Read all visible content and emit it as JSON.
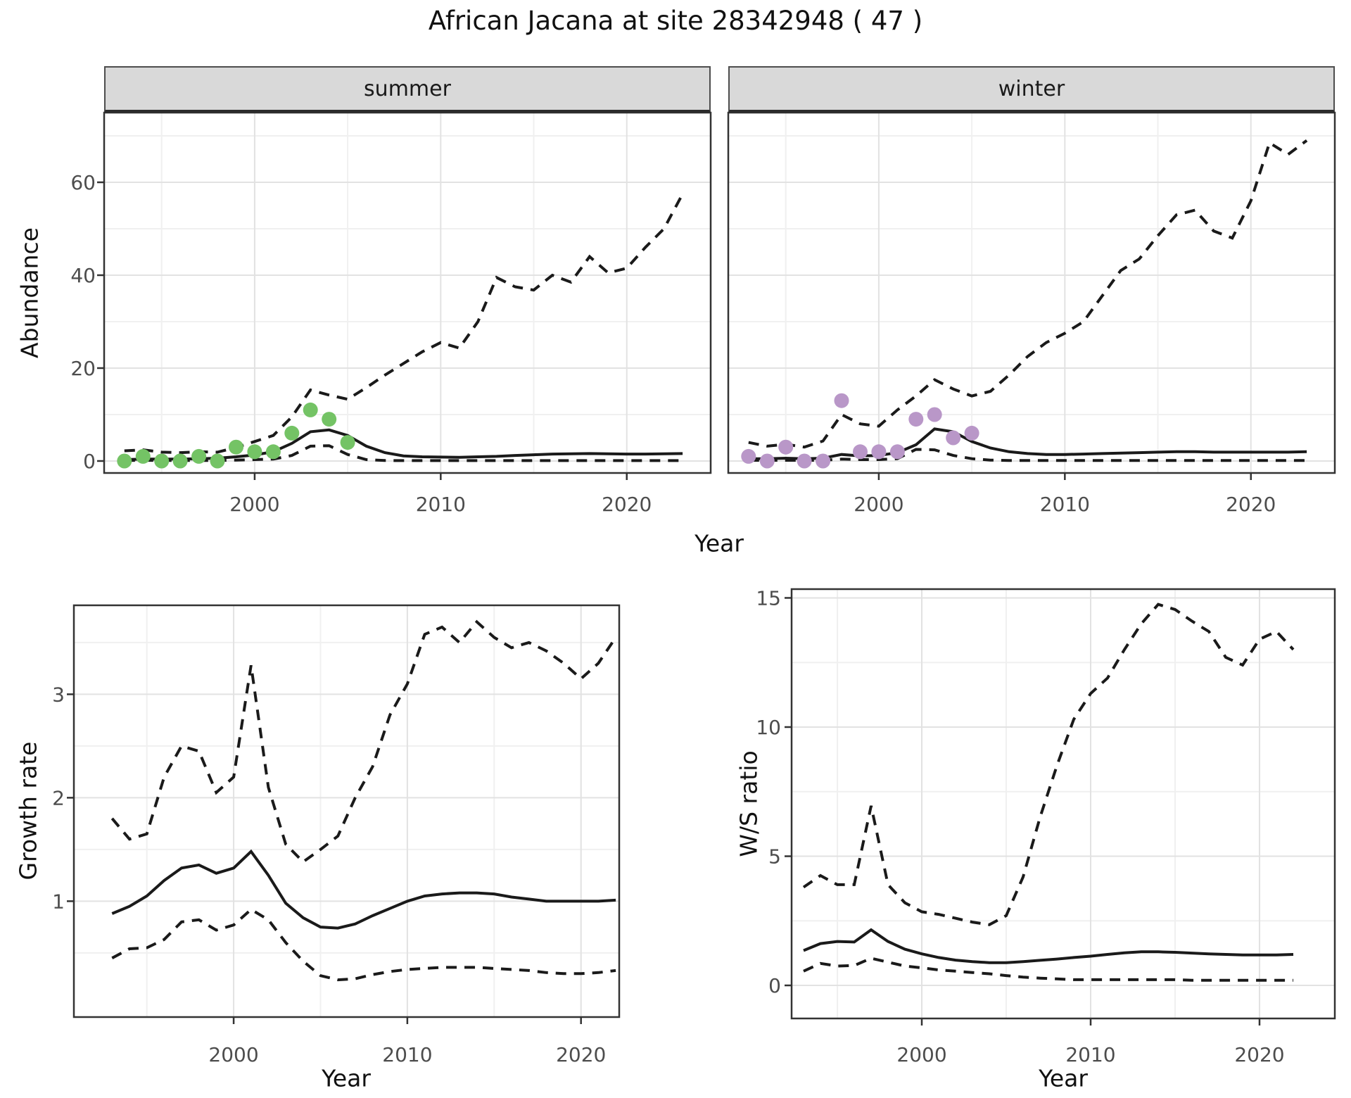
{
  "title": "African Jacana at site 28342948 ( 47 )",
  "facets": {
    "summer_label": "summer",
    "winter_label": "winter"
  },
  "axis_titles": {
    "abundance": "Abundance",
    "year": "Year",
    "growth": "Growth rate",
    "ws": "W/S ratio"
  },
  "colors": {
    "summer_points": "#74c365",
    "winter_points": "#b997c8",
    "line": "#1a1a1a",
    "grid_major": "#e2e2e2",
    "grid_minor": "#f0f0f0",
    "strip_bg": "#d9d9d9",
    "panel_border": "#333333",
    "tick_text": "#4d4d4d",
    "panel_bg": "#ffffff"
  },
  "chart_data": [
    {
      "id": "abundance-summer",
      "type": "line",
      "facet": "summer",
      "xlabel": "Year",
      "ylabel": "Abundance",
      "x": [
        1993,
        1994,
        1995,
        1996,
        1997,
        1998,
        1999,
        2000,
        2001,
        2002,
        2003,
        2004,
        2005,
        2006,
        2007,
        2008,
        2009,
        2010,
        2011,
        2012,
        2013,
        2014,
        2015,
        2016,
        2017,
        2018,
        2019,
        2020,
        2021,
        2022,
        2023
      ],
      "series": [
        {
          "name": "median",
          "style": "solid",
          "values": [
            0.3,
            0.4,
            0.4,
            0.4,
            0.5,
            0.6,
            0.9,
            1.3,
            2.0,
            3.8,
            6.3,
            6.7,
            5.5,
            3.2,
            1.8,
            1.1,
            0.9,
            0.85,
            0.8,
            0.9,
            1.0,
            1.2,
            1.35,
            1.5,
            1.55,
            1.6,
            1.55,
            1.5,
            1.5,
            1.55,
            1.6
          ]
        },
        {
          "name": "upper_CI",
          "style": "dashed",
          "values": [
            2.2,
            2.4,
            1.9,
            1.8,
            2.0,
            1.9,
            2.9,
            4.2,
            5.5,
            9.5,
            15.3,
            14.2,
            13.3,
            15.8,
            18.5,
            21,
            23.5,
            25.5,
            24.3,
            30,
            39.5,
            37.5,
            36.8,
            40,
            38.5,
            44,
            40.5,
            41.5,
            46,
            50,
            57.5
          ]
        },
        {
          "name": "lower_CI",
          "style": "dashed",
          "values": [
            0.1,
            0.15,
            0.1,
            0.1,
            0.1,
            0.1,
            0.2,
            0.3,
            0.4,
            1.2,
            3.2,
            3.3,
            1.4,
            0.3,
            0.1,
            0.08,
            0.08,
            0.08,
            0.08,
            0.08,
            0.08,
            0.08,
            0.08,
            0.08,
            0.08,
            0.08,
            0.08,
            0.08,
            0.08,
            0.08,
            0.08
          ]
        }
      ],
      "points": {
        "name": "observed_counts",
        "color_key": "summer_points",
        "years": [
          1993,
          1994,
          1995,
          1996,
          1997,
          1998,
          1999,
          2000,
          2001,
          2002,
          2003,
          2004,
          2005
        ],
        "values": [
          0,
          1,
          0,
          0,
          1,
          0,
          3,
          2,
          2,
          6,
          11,
          9,
          4
        ]
      },
      "xticks": {
        "values": [
          2000,
          2010,
          2020
        ],
        "labels": [
          "2000",
          "2010",
          "2020"
        ]
      },
      "xminor": [
        1995,
        2005,
        2015
      ],
      "yticks": {
        "values": [
          0,
          20,
          40,
          60
        ],
        "labels": [
          "0",
          "20",
          "40",
          "60"
        ]
      },
      "yminor": [
        10,
        30,
        50,
        70
      ],
      "xlim": [
        1991.91,
        2024.51
      ],
      "ylim": [
        -2.58,
        75.0
      ]
    },
    {
      "id": "abundance-winter",
      "type": "line",
      "facet": "winter",
      "xlabel": "Year",
      "ylabel": "Abundance",
      "x": [
        1993,
        1994,
        1995,
        1996,
        1997,
        1998,
        1999,
        2000,
        2001,
        2002,
        2003,
        2004,
        2005,
        2006,
        2007,
        2008,
        2009,
        2010,
        2011,
        2012,
        2013,
        2014,
        2015,
        2016,
        2017,
        2018,
        2019,
        2020,
        2021,
        2022,
        2023
      ],
      "series": [
        {
          "name": "median",
          "style": "solid",
          "values": [
            0.5,
            0.5,
            0.6,
            0.5,
            0.6,
            1.4,
            1.1,
            1.2,
            1.8,
            3.5,
            6.9,
            6.3,
            4.2,
            2.8,
            2.0,
            1.6,
            1.4,
            1.4,
            1.5,
            1.6,
            1.7,
            1.8,
            1.9,
            2.0,
            2.0,
            1.9,
            1.9,
            1.9,
            1.9,
            1.9,
            2.0
          ]
        },
        {
          "name": "upper_CI",
          "style": "dashed",
          "values": [
            4.0,
            3.2,
            3.6,
            3.0,
            4.3,
            10.0,
            8.0,
            7.5,
            11.0,
            14.0,
            17.5,
            15.5,
            14.0,
            15.0,
            18.5,
            22.5,
            25.5,
            27.5,
            30.0,
            35.5,
            41.0,
            43.5,
            48.5,
            53.0,
            54.0,
            49.5,
            48.0,
            56.0,
            68.5,
            66.0,
            69.0
          ]
        },
        {
          "name": "lower_CI",
          "style": "dashed",
          "values": [
            0.15,
            0.15,
            0.15,
            0.15,
            0.15,
            0.4,
            0.3,
            0.3,
            0.5,
            2.5,
            2.4,
            1.2,
            0.5,
            0.2,
            0.12,
            0.1,
            0.1,
            0.1,
            0.1,
            0.1,
            0.1,
            0.1,
            0.1,
            0.1,
            0.1,
            0.1,
            0.1,
            0.1,
            0.1,
            0.1,
            0.1
          ]
        }
      ],
      "points": {
        "name": "observed_counts",
        "color_key": "winter_points",
        "years": [
          1993,
          1994,
          1995,
          1996,
          1997,
          1998,
          1999,
          2000,
          2001,
          2002,
          2003,
          2004,
          2005
        ],
        "values": [
          1,
          0,
          3,
          0,
          0,
          13,
          2,
          2,
          2,
          9,
          10,
          5,
          6
        ]
      },
      "xticks": {
        "values": [
          2000,
          2010,
          2020
        ],
        "labels": [
          "2000",
          "2010",
          "2020"
        ]
      },
      "xminor": [
        1995,
        2005,
        2015
      ],
      "yticks": {
        "values": [
          0,
          20,
          40,
          60
        ],
        "labels": [
          "0",
          "20",
          "40",
          "60"
        ]
      },
      "yminor": [
        10,
        30,
        50,
        70
      ],
      "xlim": [
        1991.91,
        2024.51
      ],
      "ylim": [
        -2.58,
        75.0
      ]
    },
    {
      "id": "growth-rate",
      "type": "line",
      "xlabel": "Year",
      "ylabel": "Growth rate",
      "x": [
        1993,
        1994,
        1995,
        1996,
        1997,
        1998,
        1999,
        2000,
        2001,
        2002,
        2003,
        2004,
        2005,
        2006,
        2007,
        2008,
        2009,
        2010,
        2011,
        2012,
        2013,
        2014,
        2015,
        2016,
        2017,
        2018,
        2019,
        2020,
        2021,
        2022
      ],
      "series": [
        {
          "name": "median",
          "style": "solid",
          "values": [
            0.88,
            0.95,
            1.05,
            1.2,
            1.32,
            1.35,
            1.27,
            1.32,
            1.48,
            1.25,
            0.98,
            0.84,
            0.75,
            0.74,
            0.78,
            0.86,
            0.93,
            1.0,
            1.05,
            1.07,
            1.08,
            1.08,
            1.07,
            1.04,
            1.02,
            1.0,
            1.0,
            1.0,
            1.0,
            1.01
          ]
        },
        {
          "name": "upper_CI",
          "style": "dashed",
          "values": [
            1.8,
            1.6,
            1.65,
            2.2,
            2.5,
            2.45,
            2.05,
            2.2,
            3.28,
            2.1,
            1.55,
            1.38,
            1.5,
            1.63,
            2.0,
            2.3,
            2.8,
            3.1,
            3.58,
            3.65,
            3.5,
            3.7,
            3.55,
            3.45,
            3.5,
            3.42,
            3.3,
            3.15,
            3.3,
            3.55
          ]
        },
        {
          "name": "lower_CI",
          "style": "dashed",
          "values": [
            0.45,
            0.54,
            0.55,
            0.63,
            0.8,
            0.82,
            0.72,
            0.77,
            0.92,
            0.82,
            0.6,
            0.42,
            0.28,
            0.24,
            0.25,
            0.29,
            0.32,
            0.34,
            0.35,
            0.36,
            0.36,
            0.36,
            0.35,
            0.34,
            0.33,
            0.31,
            0.3,
            0.3,
            0.31,
            0.33
          ]
        }
      ],
      "xticks": {
        "values": [
          2000,
          2010,
          2020
        ],
        "labels": [
          "2000",
          "2010",
          "2020"
        ]
      },
      "xminor": [
        1995,
        2005,
        2015
      ],
      "yticks": {
        "values": [
          1,
          2,
          3
        ],
        "labels": [
          "1",
          "2",
          "3"
        ]
      },
      "yminor": [
        0.5,
        1.5,
        2.5,
        3.5
      ],
      "xlim": [
        1990.8,
        2022.2
      ],
      "ylim": [
        -0.12,
        3.86
      ]
    },
    {
      "id": "ws-ratio",
      "type": "line",
      "xlabel": "Year",
      "ylabel": "W/S ratio",
      "x": [
        1993,
        1994,
        1995,
        1996,
        1997,
        1998,
        1999,
        2000,
        2001,
        2002,
        2003,
        2004,
        2005,
        2006,
        2007,
        2008,
        2009,
        2010,
        2011,
        2012,
        2013,
        2014,
        2015,
        2016,
        2017,
        2018,
        2019,
        2020,
        2021,
        2022
      ],
      "series": [
        {
          "name": "median",
          "style": "solid",
          "values": [
            1.35,
            1.62,
            1.7,
            1.68,
            2.15,
            1.7,
            1.4,
            1.22,
            1.08,
            0.98,
            0.92,
            0.88,
            0.88,
            0.92,
            0.97,
            1.02,
            1.08,
            1.13,
            1.2,
            1.26,
            1.3,
            1.3,
            1.28,
            1.25,
            1.22,
            1.2,
            1.18,
            1.18,
            1.18,
            1.2
          ]
        },
        {
          "name": "upper_CI",
          "style": "dashed",
          "values": [
            3.8,
            4.25,
            3.9,
            3.9,
            6.95,
            3.9,
            3.2,
            2.85,
            2.75,
            2.6,
            2.45,
            2.35,
            2.7,
            4.2,
            6.5,
            8.5,
            10.3,
            11.3,
            11.9,
            13.0,
            14.0,
            14.75,
            14.55,
            14.1,
            13.7,
            12.7,
            12.4,
            13.4,
            13.7,
            13.0
          ]
        },
        {
          "name": "lower_CI",
          "style": "dashed",
          "values": [
            0.55,
            0.85,
            0.75,
            0.77,
            1.05,
            0.9,
            0.75,
            0.68,
            0.6,
            0.55,
            0.5,
            0.45,
            0.38,
            0.32,
            0.28,
            0.25,
            0.22,
            0.22,
            0.22,
            0.22,
            0.22,
            0.22,
            0.22,
            0.2,
            0.2,
            0.2,
            0.2,
            0.2,
            0.2,
            0.2
          ]
        }
      ],
      "xticks": {
        "values": [
          2000,
          2010,
          2020
        ],
        "labels": [
          "2000",
          "2010",
          "2020"
        ]
      },
      "xminor": [
        1995,
        2005,
        2015
      ],
      "yticks": {
        "values": [
          0,
          5,
          10,
          15
        ],
        "labels": [
          "0",
          "5",
          "10",
          "15"
        ]
      },
      "yminor": [
        2.5,
        7.5,
        12.5
      ],
      "xlim": [
        1992.29,
        2024.46
      ],
      "ylim": [
        -1.28,
        15.34
      ]
    }
  ]
}
